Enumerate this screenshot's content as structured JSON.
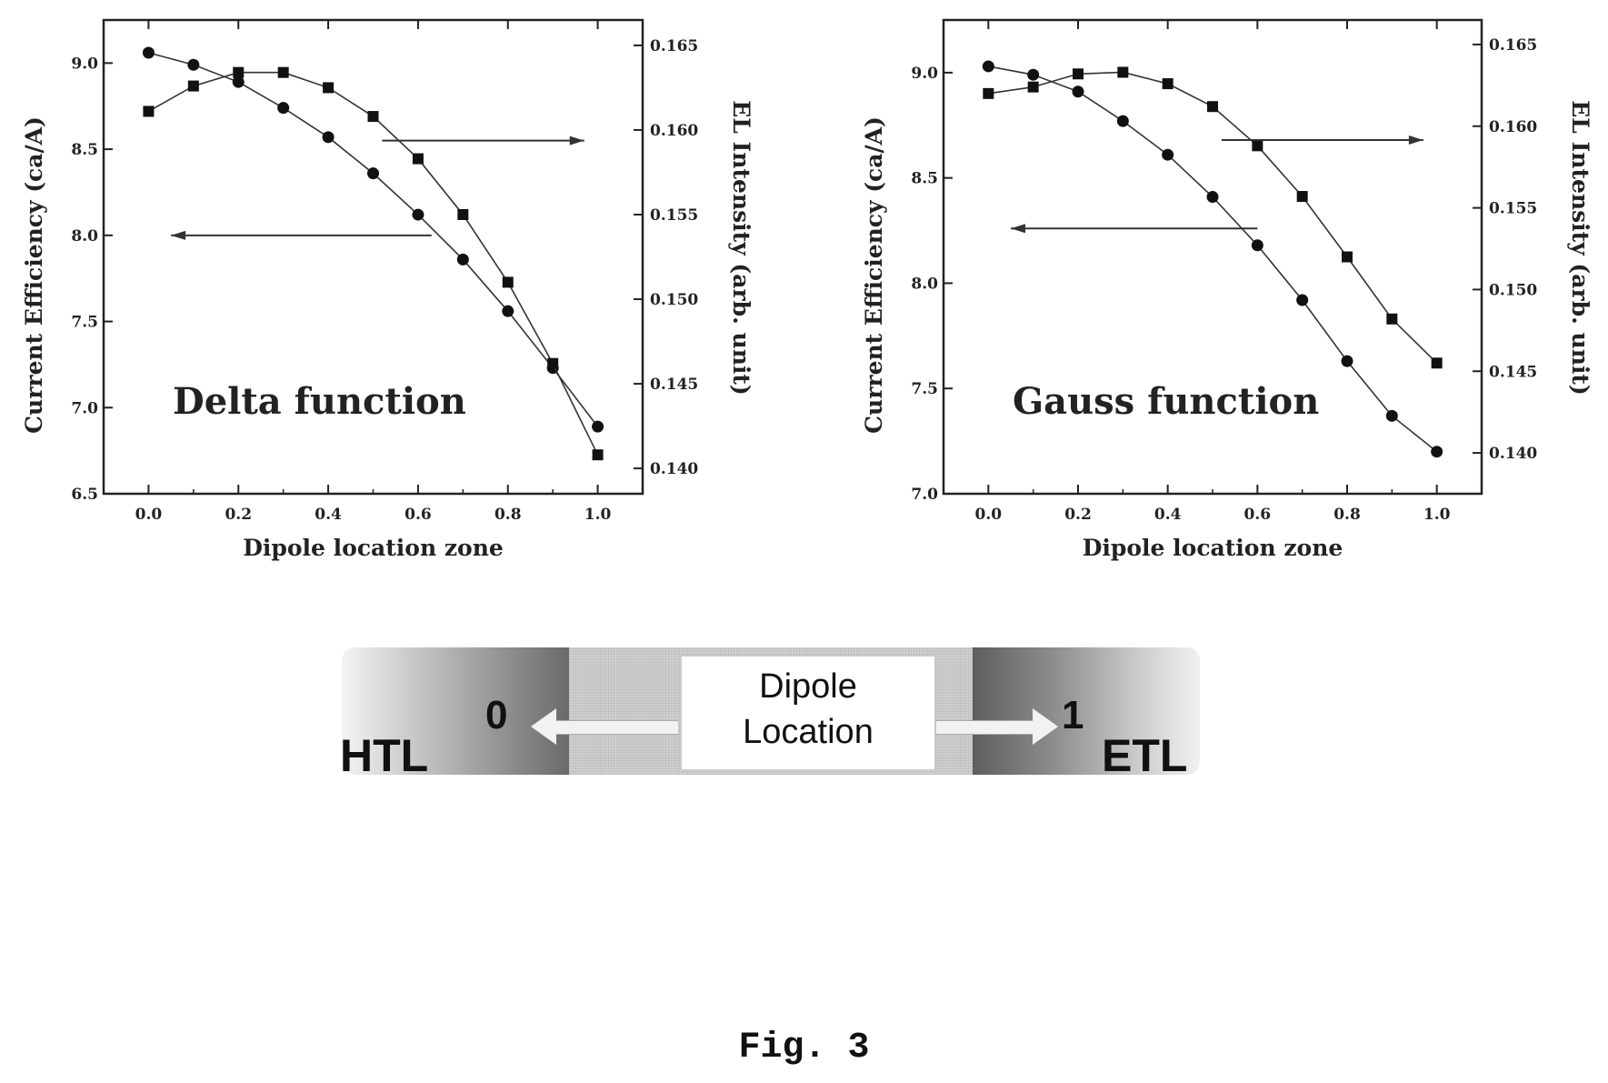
{
  "chart_data": [
    {
      "type": "line",
      "annotation": "Delta function",
      "xlabel": "Dipole location zone",
      "ylabel": "Current Efficiency (ca/A)",
      "y2label": "EL Intensity (arb. unit)",
      "xlim": [
        -0.1,
        1.1
      ],
      "ylim": [
        6.5,
        9.25
      ],
      "y2lim": [
        0.1385,
        0.1665
      ],
      "x_ticks": [
        "0.0",
        "0.2",
        "0.4",
        "0.6",
        "0.8",
        "1.0"
      ],
      "y_ticks": [
        "6.5",
        "7.0",
        "7.5",
        "8.0",
        "8.5",
        "9.0"
      ],
      "y2_ticks": [
        "0.140",
        "0.145",
        "0.150",
        "0.155",
        "0.160",
        "0.165"
      ],
      "series": [
        {
          "marker": "circle",
          "axis": "left",
          "x": [
            0.0,
            0.1,
            0.2,
            0.3,
            0.4,
            0.5,
            0.6,
            0.7,
            0.8,
            0.9,
            1.0
          ],
          "values": [
            9.06,
            8.99,
            8.89,
            8.74,
            8.57,
            8.36,
            8.12,
            7.86,
            7.56,
            7.23,
            6.89
          ]
        },
        {
          "marker": "square",
          "axis": "right",
          "x": [
            0.0,
            0.1,
            0.2,
            0.3,
            0.4,
            0.5,
            0.6,
            0.7,
            0.8,
            0.9,
            1.0
          ],
          "values": [
            0.1611,
            0.1626,
            0.1634,
            0.1634,
            0.1625,
            0.1608,
            0.1583,
            0.155,
            0.151,
            0.1462,
            0.1408
          ]
        }
      ],
      "arrows": [
        {
          "from_x": 0.52,
          "to_x": 0.97,
          "y": 8.55,
          "points_to": "right"
        },
        {
          "from_x": 0.63,
          "to_x": 0.05,
          "y": 8.0,
          "points_to": "left"
        }
      ]
    },
    {
      "type": "line",
      "annotation": "Gauss function",
      "xlabel": "Dipole location zone",
      "ylabel": "Current Efficiency (ca/A)",
      "y2label": "EL Intensity (arb. unit)",
      "xlim": [
        -0.1,
        1.1
      ],
      "ylim": [
        7.0,
        9.25
      ],
      "y2lim": [
        0.1375,
        0.1665
      ],
      "x_ticks": [
        "0.0",
        "0.2",
        "0.4",
        "0.6",
        "0.8",
        "1.0"
      ],
      "y_ticks": [
        "7.0",
        "7.5",
        "8.0",
        "8.5",
        "9.0"
      ],
      "y2_ticks": [
        "0.140",
        "0.145",
        "0.150",
        "0.155",
        "0.160",
        "0.165"
      ],
      "series": [
        {
          "marker": "circle",
          "axis": "left",
          "x": [
            0.0,
            0.1,
            0.2,
            0.3,
            0.4,
            0.5,
            0.6,
            0.7,
            0.8,
            0.9,
            1.0
          ],
          "values": [
            9.03,
            8.99,
            8.91,
            8.77,
            8.61,
            8.41,
            8.18,
            7.92,
            7.63,
            7.37,
            7.2
          ]
        },
        {
          "marker": "square",
          "axis": "right",
          "x": [
            0.0,
            0.1,
            0.2,
            0.3,
            0.4,
            0.5,
            0.6,
            0.7,
            0.8,
            0.9,
            1.0
          ],
          "values": [
            0.162,
            0.1624,
            0.1632,
            0.1633,
            0.1626,
            0.1612,
            0.1588,
            0.1557,
            0.152,
            0.1482,
            0.1455
          ]
        }
      ],
      "arrows": [
        {
          "from_x": 0.52,
          "to_x": 0.97,
          "y": 8.68,
          "points_to": "right"
        },
        {
          "from_x": 0.6,
          "to_x": 0.05,
          "y": 8.26,
          "points_to": "left"
        }
      ]
    }
  ],
  "diagram": {
    "left_label": "HTL",
    "right_label": "ETL",
    "left_value": "0",
    "right_value": "1",
    "center_line1": "Dipole",
    "center_line2": "Location"
  },
  "figure_label": "Fig. 3"
}
